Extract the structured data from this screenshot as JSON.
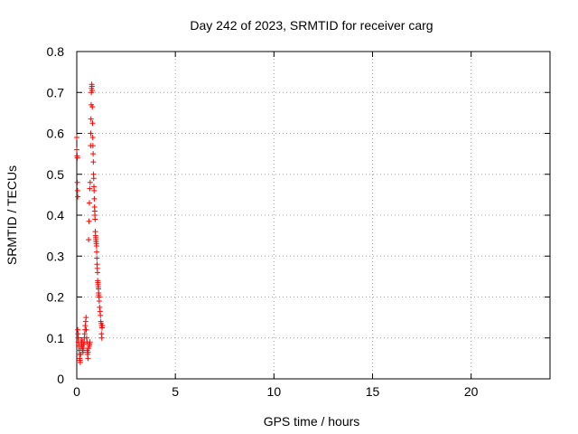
{
  "chart_data": {
    "type": "scatter",
    "title": "Day 242 of 2023, SRMTID for receiver carg",
    "xlabel": "GPS time / hours",
    "ylabel": "SRMTID / TECUs",
    "xlim": [
      0,
      24
    ],
    "ylim": [
      0,
      0.8
    ],
    "xticks": [
      0,
      5,
      10,
      15,
      20
    ],
    "yticks": [
      0,
      0.1,
      0.2,
      0.3,
      0.4,
      0.5,
      0.6,
      0.7,
      0.8
    ],
    "grid": true,
    "marker": "plus",
    "series": [
      {
        "color": "#ff0000",
        "points": [
          [
            0.0,
            0.59
          ],
          [
            0.0,
            0.56
          ],
          [
            0.02,
            0.545
          ],
          [
            0.03,
            0.54
          ],
          [
            0.03,
            0.48
          ],
          [
            0.04,
            0.46
          ],
          [
            0.05,
            0.445
          ],
          [
            0.05,
            0.12
          ],
          [
            0.06,
            0.11
          ],
          [
            0.07,
            0.1
          ],
          [
            0.08,
            0.09
          ],
          [
            0.1,
            0.08
          ],
          [
            0.12,
            0.07
          ],
          [
            0.14,
            0.06
          ],
          [
            0.15,
            0.05
          ],
          [
            0.17,
            0.045
          ],
          [
            0.18,
            0.04
          ],
          [
            0.2,
            0.06
          ],
          [
            0.22,
            0.075
          ],
          [
            0.23,
            0.09
          ],
          [
            0.25,
            0.085
          ],
          [
            0.27,
            0.095
          ],
          [
            0.28,
            0.08
          ],
          [
            0.3,
            0.07
          ],
          [
            0.32,
            0.065
          ],
          [
            0.33,
            0.075
          ],
          [
            0.35,
            0.085
          ],
          [
            0.37,
            0.09
          ],
          [
            0.38,
            0.1
          ],
          [
            0.4,
            0.11
          ],
          [
            0.42,
            0.12
          ],
          [
            0.43,
            0.13
          ],
          [
            0.45,
            0.14
          ],
          [
            0.47,
            0.15
          ],
          [
            0.48,
            0.12
          ],
          [
            0.5,
            0.1
          ],
          [
            0.52,
            0.09
          ],
          [
            0.53,
            0.07
          ],
          [
            0.55,
            0.06
          ],
          [
            0.57,
            0.05
          ],
          [
            0.58,
            0.065
          ],
          [
            0.6,
            0.075
          ],
          [
            0.6,
            0.34
          ],
          [
            0.62,
            0.385
          ],
          [
            0.63,
            0.08
          ],
          [
            0.64,
            0.43
          ],
          [
            0.65,
            0.085
          ],
          [
            0.66,
            0.465
          ],
          [
            0.67,
            0.09
          ],
          [
            0.68,
            0.48
          ],
          [
            0.7,
            0.57
          ],
          [
            0.71,
            0.6
          ],
          [
            0.72,
            0.635
          ],
          [
            0.73,
            0.67
          ],
          [
            0.74,
            0.7
          ],
          [
            0.75,
            0.71
          ],
          [
            0.76,
            0.72
          ],
          [
            0.77,
            0.715
          ],
          [
            0.78,
            0.705
          ],
          [
            0.79,
            0.665
          ],
          [
            0.8,
            0.625
          ],
          [
            0.81,
            0.59
          ],
          [
            0.82,
            0.57
          ],
          [
            0.83,
            0.55
          ],
          [
            0.84,
            0.53
          ],
          [
            0.85,
            0.5
          ],
          [
            0.86,
            0.49
          ],
          [
            0.87,
            0.47
          ],
          [
            0.88,
            0.46
          ],
          [
            0.89,
            0.44
          ],
          [
            0.9,
            0.42
          ],
          [
            0.91,
            0.41
          ],
          [
            0.92,
            0.4
          ],
          [
            0.93,
            0.39
          ],
          [
            0.94,
            0.36
          ],
          [
            0.95,
            0.35
          ],
          [
            0.96,
            0.345
          ],
          [
            0.97,
            0.34
          ],
          [
            0.98,
            0.335
          ],
          [
            0.99,
            0.33
          ],
          [
            1.0,
            0.325
          ],
          [
            1.01,
            0.31
          ],
          [
            1.02,
            0.295
          ],
          [
            1.03,
            0.28
          ],
          [
            1.04,
            0.27
          ],
          [
            1.05,
            0.26
          ],
          [
            1.06,
            0.24
          ],
          [
            1.07,
            0.235
          ],
          [
            1.08,
            0.23
          ],
          [
            1.09,
            0.225
          ],
          [
            1.1,
            0.22
          ],
          [
            1.11,
            0.21
          ],
          [
            1.12,
            0.205
          ],
          [
            1.13,
            0.2
          ],
          [
            1.14,
            0.19
          ],
          [
            1.16,
            0.175
          ],
          [
            1.18,
            0.165
          ],
          [
            1.2,
            0.155
          ],
          [
            1.22,
            0.14
          ],
          [
            1.24,
            0.135
          ],
          [
            1.26,
            0.13
          ],
          [
            1.28,
            0.125
          ],
          [
            1.3,
            0.13
          ],
          [
            1.25,
            0.11
          ],
          [
            1.27,
            0.1
          ]
        ]
      }
    ]
  }
}
